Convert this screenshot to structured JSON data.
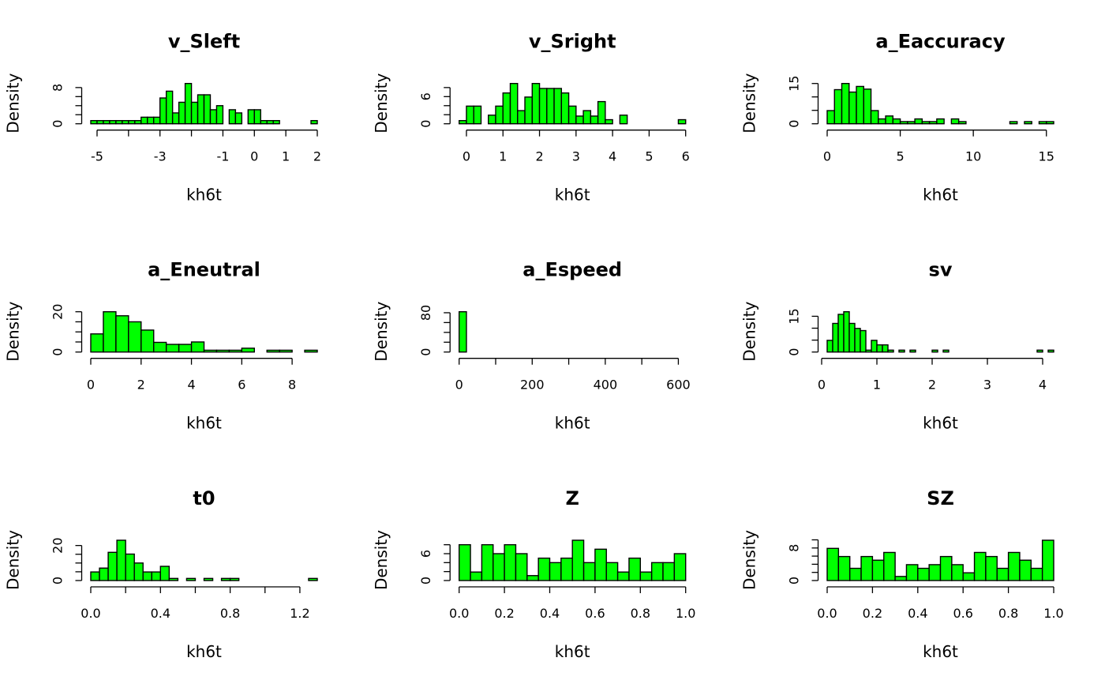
{
  "chart_data": [
    {
      "type": "bar",
      "title": "v_Sleft",
      "xlabel": "kh6t",
      "ylabel": "Density",
      "breaks_start": -5.2,
      "bin_width": 0.2,
      "values": [
        0.7,
        0.7,
        0.7,
        0.7,
        0.7,
        0.7,
        0.7,
        0.7,
        1.45,
        1.45,
        1.45,
        5.7,
        7.2,
        2.4,
        4.75,
        8.9,
        4.75,
        6.4,
        6.4,
        3.1,
        4,
        0,
        3.1,
        2.4,
        0,
        3.1,
        3.1,
        0.7,
        0.7,
        0.7,
        0,
        0,
        0,
        0,
        0,
        0.7
      ],
      "xticks": [
        -5,
        -4,
        -3,
        -2,
        -1,
        0,
        1,
        2
      ],
      "xtick_labels": [
        "-5",
        "",
        "-3",
        "",
        "-1",
        "0",
        "1",
        "2"
      ],
      "yticks": [
        0,
        2,
        4,
        6,
        8
      ],
      "ytick_labels": [
        "0",
        "",
        "",
        "",
        "8"
      ]
    },
    {
      "type": "bar",
      "title": "v_Sright",
      "xlabel": "kh6t",
      "ylabel": "Density",
      "breaks_start": -0.2,
      "bin_width": 0.2,
      "values": [
        0.7,
        3.9,
        3.9,
        0,
        1.9,
        3.9,
        6.8,
        8.9,
        2.9,
        5.9,
        8.9,
        7.8,
        7.8,
        7.8,
        6.8,
        3.9,
        1.7,
        2.9,
        1.7,
        4.9,
        0.9,
        0,
        1.9,
        0,
        0,
        0,
        0,
        0,
        0,
        0,
        0.9
      ],
      "xticks": [
        0,
        1,
        2,
        3,
        4,
        5,
        6
      ],
      "xtick_labels": [
        "0",
        "1",
        "2",
        "3",
        "4",
        "5",
        "6"
      ],
      "yticks": [
        0,
        2,
        4,
        6,
        8
      ],
      "ytick_labels": [
        "0",
        "",
        "",
        "6",
        ""
      ]
    },
    {
      "type": "bar",
      "title": "a_Eaccuracy",
      "xlabel": "kh6t",
      "ylabel": "Density",
      "breaks_start": 0,
      "bin_width": 0.5,
      "values": [
        4.9,
        12.7,
        15,
        11.8,
        13.9,
        12.9,
        4.9,
        1.8,
        2.9,
        1.8,
        0.8,
        0.8,
        1.8,
        0.8,
        0.8,
        1.8,
        0,
        1.8,
        0.8,
        0,
        0,
        0,
        0,
        0,
        0,
        0.8,
        0,
        0.8,
        0,
        0.8,
        0.8
      ],
      "xticks": [
        0,
        5,
        10,
        15
      ],
      "xtick_labels": [
        "0",
        "5",
        "10",
        "15"
      ],
      "yticks": [
        0,
        5,
        10,
        15
      ],
      "ytick_labels": [
        "0",
        "",
        "",
        "15"
      ]
    },
    {
      "type": "bar",
      "title": "a_Eneutral",
      "xlabel": "kh6t",
      "ylabel": "Density",
      "breaks_start": 0,
      "bin_width": 0.5,
      "values": [
        9,
        20,
        18,
        15,
        10.9,
        4.8,
        3.8,
        3.8,
        5,
        0.9,
        0.9,
        0.9,
        1.9,
        0,
        0.9,
        0.9,
        0,
        0.9
      ],
      "xticks": [
        0,
        2,
        4,
        6,
        8
      ],
      "xtick_labels": [
        "0",
        "2",
        "4",
        "6",
        "8"
      ],
      "yticks": [
        0,
        5,
        10,
        15,
        20
      ],
      "ytick_labels": [
        "0",
        "",
        "",
        "",
        "20"
      ]
    },
    {
      "type": "bar",
      "title": "a_Espeed",
      "xlabel": "kh6t",
      "ylabel": "Density",
      "breaks_start": 0,
      "bin_width": 20,
      "values": [
        82,
        0,
        0,
        0,
        0,
        0,
        0,
        0,
        0,
        0,
        0,
        0,
        0,
        0,
        0,
        0,
        0,
        0,
        0,
        0,
        0,
        0,
        0,
        0,
        0,
        0,
        0,
        0,
        0,
        0,
        0
      ],
      "xticks": [
        0,
        100,
        200,
        300,
        400,
        500,
        600
      ],
      "xtick_labels": [
        "0",
        "",
        "200",
        "",
        "400",
        "",
        "600"
      ],
      "yticks": [
        0,
        20,
        40,
        60,
        80
      ],
      "ytick_labels": [
        "0",
        "",
        "",
        "",
        "80"
      ]
    },
    {
      "type": "bar",
      "title": "sv",
      "xlabel": "kh6t",
      "ylabel": "Density",
      "breaks_start": 0.1,
      "bin_width": 0.1,
      "values": [
        4.9,
        12,
        15.8,
        16.9,
        12,
        9.9,
        9,
        0.8,
        4.9,
        3,
        3,
        0.8,
        0,
        0.8,
        0,
        0.8,
        0,
        0,
        0,
        0.8,
        0,
        0.8,
        0,
        0,
        0,
        0,
        0,
        0,
        0,
        0,
        0,
        0,
        0,
        0,
        0,
        0,
        0,
        0,
        0.8,
        0,
        0.8
      ],
      "xticks": [
        0,
        1,
        2,
        3,
        4
      ],
      "xtick_labels": [
        "0",
        "1",
        "2",
        "3",
        "4"
      ],
      "yticks": [
        0,
        5,
        10,
        15
      ],
      "ytick_labels": [
        "0",
        "",
        "",
        "15"
      ]
    },
    {
      "type": "bar",
      "title": "t0",
      "xlabel": "kh6t",
      "ylabel": "Density",
      "breaks_start": 0,
      "bin_width": 0.05,
      "values": [
        4.9,
        7.1,
        16.1,
        23,
        15.1,
        10,
        4.9,
        4.9,
        8.1,
        1.2,
        0,
        1.2,
        0,
        1.2,
        0,
        1.2,
        1.2,
        0,
        0,
        0,
        0,
        0,
        0,
        0,
        0,
        1.2
      ],
      "xticks": [
        0,
        0.2,
        0.4,
        0.6,
        0.8,
        1.0,
        1.2
      ],
      "xtick_labels": [
        "0.0",
        "",
        "0.4",
        "",
        "0.8",
        "",
        "1.2"
      ],
      "yticks": [
        0,
        5,
        10,
        15,
        20
      ],
      "ytick_labels": [
        "0",
        "",
        "",
        "",
        "20"
      ]
    },
    {
      "type": "bar",
      "title": "Z",
      "xlabel": "kh6t",
      "ylabel": "Density",
      "breaks_start": 0,
      "bin_width": 0.05,
      "values": [
        8,
        1.9,
        8,
        6,
        8,
        6,
        1.1,
        5,
        4,
        5,
        9,
        4,
        7,
        4,
        1.9,
        5,
        1.9,
        4,
        4,
        6
      ],
      "xticks": [
        0,
        0.2,
        0.4,
        0.6,
        0.8,
        1.0
      ],
      "xtick_labels": [
        "0.0",
        "0.2",
        "0.4",
        "0.6",
        "0.8",
        "1.0"
      ],
      "yticks": [
        0,
        2,
        4,
        6,
        8
      ],
      "ytick_labels": [
        "0",
        "",
        "",
        "6",
        ""
      ]
    },
    {
      "type": "bar",
      "title": "SZ",
      "xlabel": "kh6t",
      "ylabel": "Density",
      "breaks_start": 0,
      "bin_width": 0.05,
      "values": [
        7.9,
        5.9,
        3,
        5.9,
        5,
        6.9,
        1,
        3.9,
        3,
        3.9,
        5.9,
        3.9,
        1.9,
        6.9,
        5.9,
        3,
        6.9,
        5,
        3,
        9.9
      ],
      "xticks": [
        0,
        0.2,
        0.4,
        0.6,
        0.8,
        1.0
      ],
      "xtick_labels": [
        "0.0",
        "0.2",
        "0.4",
        "0.6",
        "0.8",
        "1.0"
      ],
      "yticks": [
        0,
        2,
        4,
        6,
        8,
        10
      ],
      "ytick_labels": [
        "0",
        "",
        "",
        "",
        "8",
        ""
      ]
    }
  ],
  "colors": {
    "bar_fill": "#00FF00",
    "bar_stroke": "#000000"
  }
}
